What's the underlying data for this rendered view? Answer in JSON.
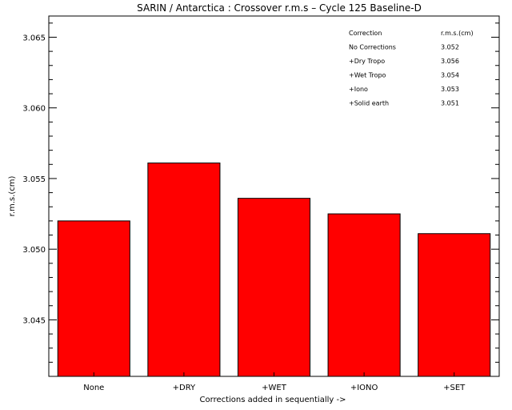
{
  "chart_data": {
    "type": "bar",
    "title": "SARIN / Antarctica : Crossover r.m.s – Cycle 125 Baseline-D",
    "xlabel": "Corrections added in sequentially ->",
    "ylabel": "r.m.s.(cm)",
    "categories": [
      "None",
      "+DRY",
      "+WET",
      "+IONO",
      "+SET"
    ],
    "values": [
      3.052,
      3.0561,
      3.0536,
      3.0525,
      3.0511
    ],
    "ylim": [
      3.041,
      3.0665
    ],
    "yticks": [
      3.045,
      3.05,
      3.055,
      3.06,
      3.065
    ],
    "ytick_labels": [
      "3.045",
      "3.050",
      "3.055",
      "3.060",
      "3.065"
    ],
    "y_minor_step": 0.001,
    "bar_color": "#ff0000",
    "grid": false,
    "legend_position": "top-right",
    "legend_table": {
      "header": [
        "Correction",
        "r.m.s.(cm)"
      ],
      "rows": [
        [
          "No Corrections",
          "3.052"
        ],
        [
          "+Dry Tropo",
          "3.056"
        ],
        [
          "+Wet Tropo",
          "3.054"
        ],
        [
          "+Iono",
          "3.053"
        ],
        [
          "+Solid earth",
          "3.051"
        ]
      ]
    }
  }
}
